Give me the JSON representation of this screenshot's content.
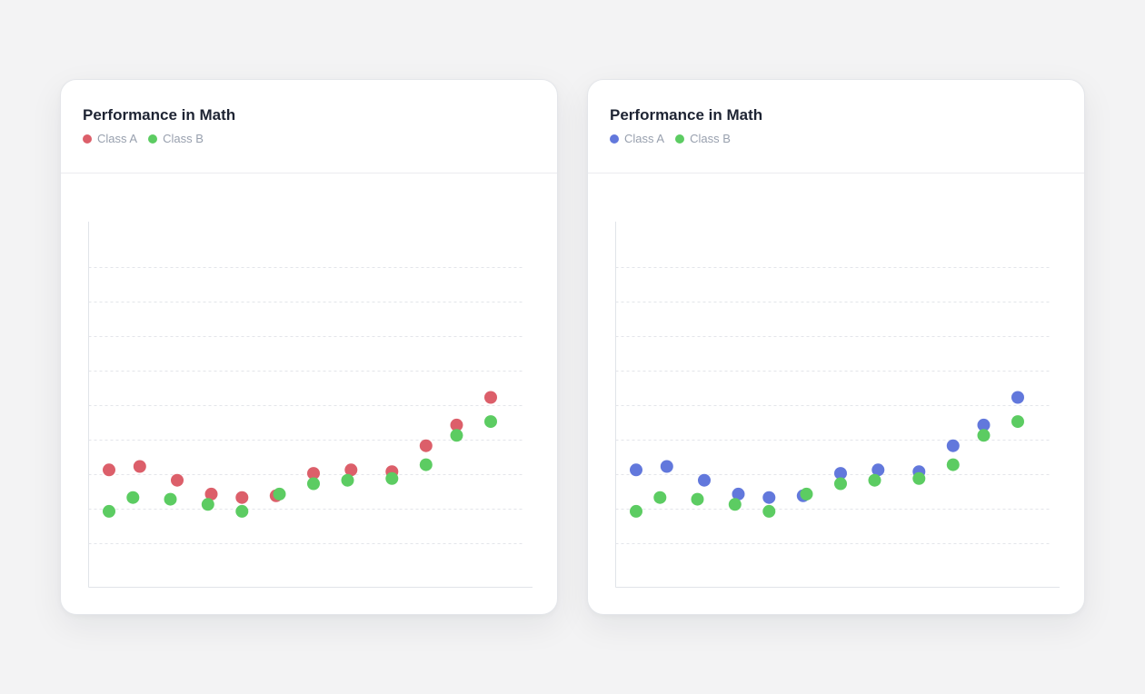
{
  "chart_data": [
    {
      "type": "scatter",
      "title": "Performance in Math",
      "xlabel": "",
      "ylabel": "",
      "grid": true,
      "legend_placement": "top-left",
      "xlim": [
        0,
        13
      ],
      "ylim": [
        0,
        100
      ],
      "series": [
        {
          "name": "Class A",
          "color": "#dc5f6a",
          "x": [
            0.6,
            1.5,
            2.6,
            3.6,
            4.5,
            5.5,
            6.6,
            7.7,
            8.9,
            9.9,
            10.8,
            11.8
          ],
          "y": [
            34,
            35,
            31,
            27,
            26,
            26.5,
            33,
            34,
            33.5,
            41,
            47,
            55
          ]
        },
        {
          "name": "Class B",
          "color": "#5ccc62",
          "x": [
            0.6,
            1.3,
            2.4,
            3.5,
            4.5,
            5.6,
            6.6,
            7.6,
            8.9,
            9.9,
            10.8,
            11.8
          ],
          "y": [
            22,
            26,
            25.5,
            24,
            22,
            27,
            30,
            31,
            31.5,
            35.5,
            44,
            48
          ]
        }
      ]
    },
    {
      "type": "scatter",
      "title": "Performance in Math",
      "xlabel": "",
      "ylabel": "",
      "grid": true,
      "legend_placement": "top-left",
      "xlim": [
        0,
        13
      ],
      "ylim": [
        0,
        100
      ],
      "series": [
        {
          "name": "Class A",
          "color": "#6278dc",
          "x": [
            0.6,
            1.5,
            2.6,
            3.6,
            4.5,
            5.5,
            6.6,
            7.7,
            8.9,
            9.9,
            10.8,
            11.8
          ],
          "y": [
            34,
            35,
            31,
            27,
            26,
            26.5,
            33,
            34,
            33.5,
            41,
            47,
            55
          ]
        },
        {
          "name": "Class B",
          "color": "#5ccc62",
          "x": [
            0.6,
            1.3,
            2.4,
            3.5,
            4.5,
            5.6,
            6.6,
            7.6,
            8.9,
            9.9,
            10.8,
            11.8
          ],
          "y": [
            22,
            26,
            25.5,
            24,
            22,
            27,
            30,
            31,
            31.5,
            35.5,
            44,
            48
          ]
        }
      ]
    }
  ]
}
